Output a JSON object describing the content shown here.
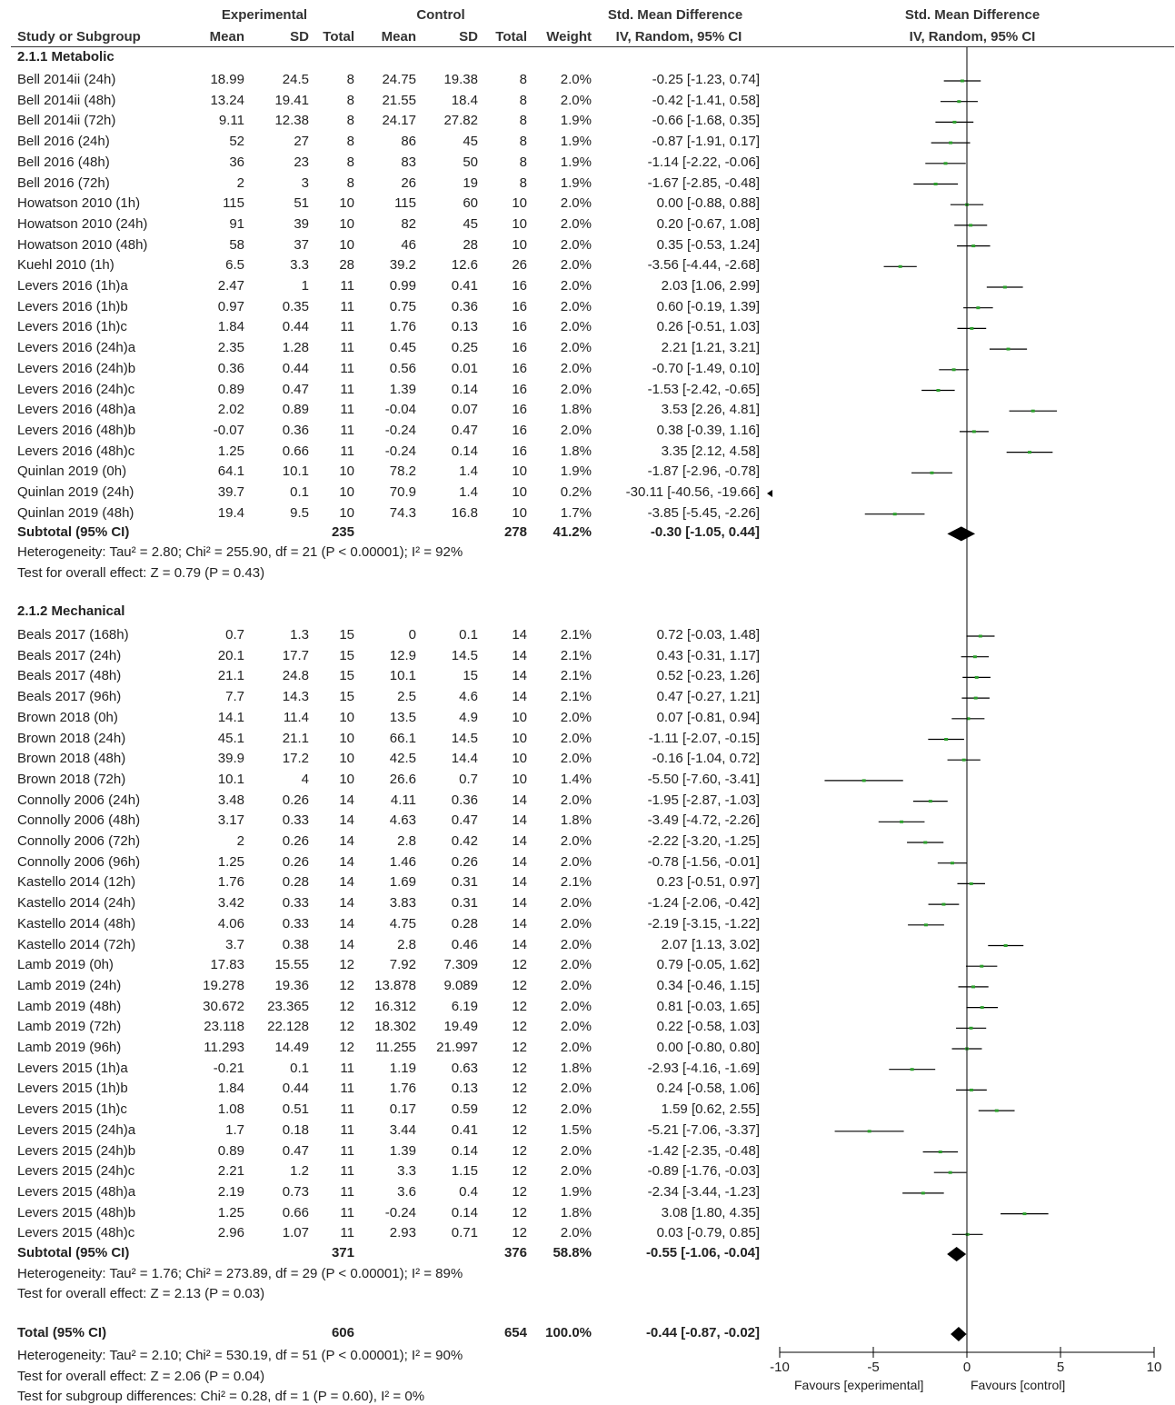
{
  "headers": {
    "experimental": "Experimental",
    "control": "Control",
    "std_mean_diff": "Std. Mean Difference",
    "study_or_subgroup": "Study or Subgroup",
    "mean": "Mean",
    "sd": "SD",
    "total": "Total",
    "weight": "Weight",
    "method": "IV, Random, 95% CI",
    "plot_title": "Std. Mean Difference",
    "plot_method": "IV, Random, 95% CI"
  },
  "groups": [
    {
      "title": "2.1.1 Metabolic",
      "studies": [
        {
          "name": "Bell 2014ii (24h)",
          "em": "18.99",
          "esd": "24.5",
          "et": "8",
          "cm": "24.75",
          "csd": "19.38",
          "ct": "8",
          "w": "2.0%",
          "ci": "-0.25 [-1.23, 0.74]",
          "est": -0.25,
          "lo": -1.23,
          "hi": 0.74
        },
        {
          "name": "Bell 2014ii (48h)",
          "em": "13.24",
          "esd": "19.41",
          "et": "8",
          "cm": "21.55",
          "csd": "18.4",
          "ct": "8",
          "w": "2.0%",
          "ci": "-0.42 [-1.41, 0.58]",
          "est": -0.42,
          "lo": -1.41,
          "hi": 0.58
        },
        {
          "name": "Bell 2014ii (72h)",
          "em": "9.11",
          "esd": "12.38",
          "et": "8",
          "cm": "24.17",
          "csd": "27.82",
          "ct": "8",
          "w": "1.9%",
          "ci": "-0.66 [-1.68, 0.35]",
          "est": -0.66,
          "lo": -1.68,
          "hi": 0.35
        },
        {
          "name": "Bell 2016 (24h)",
          "em": "52",
          "esd": "27",
          "et": "8",
          "cm": "86",
          "csd": "45",
          "ct": "8",
          "w": "1.9%",
          "ci": "-0.87 [-1.91, 0.17]",
          "est": -0.87,
          "lo": -1.91,
          "hi": 0.17
        },
        {
          "name": "Bell 2016 (48h)",
          "em": "36",
          "esd": "23",
          "et": "8",
          "cm": "83",
          "csd": "50",
          "ct": "8",
          "w": "1.9%",
          "ci": "-1.14 [-2.22, -0.06]",
          "est": -1.14,
          "lo": -2.22,
          "hi": -0.06
        },
        {
          "name": "Bell 2016 (72h)",
          "em": "2",
          "esd": "3",
          "et": "8",
          "cm": "26",
          "csd": "19",
          "ct": "8",
          "w": "1.9%",
          "ci": "-1.67 [-2.85, -0.48]",
          "est": -1.67,
          "lo": -2.85,
          "hi": -0.48
        },
        {
          "name": "Howatson 2010 (1h)",
          "em": "115",
          "esd": "51",
          "et": "10",
          "cm": "115",
          "csd": "60",
          "ct": "10",
          "w": "2.0%",
          "ci": "0.00 [-0.88, 0.88]",
          "est": 0.0,
          "lo": -0.88,
          "hi": 0.88
        },
        {
          "name": "Howatson 2010 (24h)",
          "em": "91",
          "esd": "39",
          "et": "10",
          "cm": "82",
          "csd": "45",
          "ct": "10",
          "w": "2.0%",
          "ci": "0.20 [-0.67, 1.08]",
          "est": 0.2,
          "lo": -0.67,
          "hi": 1.08
        },
        {
          "name": "Howatson 2010 (48h)",
          "em": "58",
          "esd": "37",
          "et": "10",
          "cm": "46",
          "csd": "28",
          "ct": "10",
          "w": "2.0%",
          "ci": "0.35 [-0.53, 1.24]",
          "est": 0.35,
          "lo": -0.53,
          "hi": 1.24
        },
        {
          "name": "Kuehl 2010 (1h)",
          "em": "6.5",
          "esd": "3.3",
          "et": "28",
          "cm": "39.2",
          "csd": "12.6",
          "ct": "26",
          "w": "2.0%",
          "ci": "-3.56 [-4.44, -2.68]",
          "est": -3.56,
          "lo": -4.44,
          "hi": -2.68
        },
        {
          "name": "Levers 2016 (1h)a",
          "em": "2.47",
          "esd": "1",
          "et": "11",
          "cm": "0.99",
          "csd": "0.41",
          "ct": "16",
          "w": "2.0%",
          "ci": "2.03 [1.06, 2.99]",
          "est": 2.03,
          "lo": 1.06,
          "hi": 2.99
        },
        {
          "name": "Levers 2016 (1h)b",
          "em": "0.97",
          "esd": "0.35",
          "et": "11",
          "cm": "0.75",
          "csd": "0.36",
          "ct": "16",
          "w": "2.0%",
          "ci": "0.60 [-0.19, 1.39]",
          "est": 0.6,
          "lo": -0.19,
          "hi": 1.39
        },
        {
          "name": "Levers 2016 (1h)c",
          "em": "1.84",
          "esd": "0.44",
          "et": "11",
          "cm": "1.76",
          "csd": "0.13",
          "ct": "16",
          "w": "2.0%",
          "ci": "0.26 [-0.51, 1.03]",
          "est": 0.26,
          "lo": -0.51,
          "hi": 1.03
        },
        {
          "name": "Levers 2016 (24h)a",
          "em": "2.35",
          "esd": "1.28",
          "et": "11",
          "cm": "0.45",
          "csd": "0.25",
          "ct": "16",
          "w": "2.0%",
          "ci": "2.21 [1.21, 3.21]",
          "est": 2.21,
          "lo": 1.21,
          "hi": 3.21
        },
        {
          "name": "Levers 2016 (24h)b",
          "em": "0.36",
          "esd": "0.44",
          "et": "11",
          "cm": "0.56",
          "csd": "0.01",
          "ct": "16",
          "w": "2.0%",
          "ci": "-0.70 [-1.49, 0.10]",
          "est": -0.7,
          "lo": -1.49,
          "hi": 0.1
        },
        {
          "name": "Levers 2016 (24h)c",
          "em": "0.89",
          "esd": "0.47",
          "et": "11",
          "cm": "1.39",
          "csd": "0.14",
          "ct": "16",
          "w": "2.0%",
          "ci": "-1.53 [-2.42, -0.65]",
          "est": -1.53,
          "lo": -2.42,
          "hi": -0.65
        },
        {
          "name": "Levers 2016 (48h)a",
          "em": "2.02",
          "esd": "0.89",
          "et": "11",
          "cm": "-0.04",
          "csd": "0.07",
          "ct": "16",
          "w": "1.8%",
          "ci": "3.53 [2.26, 4.81]",
          "est": 3.53,
          "lo": 2.26,
          "hi": 4.81
        },
        {
          "name": "Levers 2016 (48h)b",
          "em": "-0.07",
          "esd": "0.36",
          "et": "11",
          "cm": "-0.24",
          "csd": "0.47",
          "ct": "16",
          "w": "2.0%",
          "ci": "0.38 [-0.39, 1.16]",
          "est": 0.38,
          "lo": -0.39,
          "hi": 1.16
        },
        {
          "name": "Levers 2016 (48h)c",
          "em": "1.25",
          "esd": "0.66",
          "et": "11",
          "cm": "-0.24",
          "csd": "0.14",
          "ct": "16",
          "w": "1.8%",
          "ci": "3.35 [2.12, 4.58]",
          "est": 3.35,
          "lo": 2.12,
          "hi": 4.58
        },
        {
          "name": "Quinlan 2019 (0h)",
          "em": "64.1",
          "esd": "10.1",
          "et": "10",
          "cm": "78.2",
          "csd": "1.4",
          "ct": "10",
          "w": "1.9%",
          "ci": "-1.87 [-2.96, -0.78]",
          "est": -1.87,
          "lo": -2.96,
          "hi": -0.78
        },
        {
          "name": "Quinlan 2019 (24h)",
          "em": "39.7",
          "esd": "0.1",
          "et": "10",
          "cm": "70.9",
          "csd": "1.4",
          "ct": "10",
          "w": "0.2%",
          "ci": "-30.11 [-40.56, -19.66]",
          "est": -30.11,
          "lo": -40.56,
          "hi": -19.66
        },
        {
          "name": "Quinlan 2019 (48h)",
          "em": "19.4",
          "esd": "9.5",
          "et": "10",
          "cm": "74.3",
          "csd": "16.8",
          "ct": "10",
          "w": "1.7%",
          "ci": "-3.85 [-5.45, -2.26]",
          "est": -3.85,
          "lo": -5.45,
          "hi": -2.26
        }
      ],
      "subtotal": {
        "label": "Subtotal (95% CI)",
        "et": "235",
        "ct": "278",
        "w": "41.2%",
        "ci": "-0.30 [-1.05, 0.44]",
        "est": -0.3,
        "lo": -1.05,
        "hi": 0.44
      },
      "heterogeneity": "Heterogeneity: Tau² = 2.80; Chi² = 255.90, df = 21 (P < 0.00001); I² = 92%",
      "overall": "Test for overall effect: Z = 0.79 (P = 0.43)"
    },
    {
      "title": "2.1.2 Mechanical",
      "studies": [
        {
          "name": "Beals 2017 (168h)",
          "em": "0.7",
          "esd": "1.3",
          "et": "15",
          "cm": "0",
          "csd": "0.1",
          "ct": "14",
          "w": "2.1%",
          "ci": "0.72 [-0.03, 1.48]",
          "est": 0.72,
          "lo": -0.03,
          "hi": 1.48
        },
        {
          "name": "Beals 2017 (24h)",
          "em": "20.1",
          "esd": "17.7",
          "et": "15",
          "cm": "12.9",
          "csd": "14.5",
          "ct": "14",
          "w": "2.1%",
          "ci": "0.43 [-0.31, 1.17]",
          "est": 0.43,
          "lo": -0.31,
          "hi": 1.17
        },
        {
          "name": "Beals 2017 (48h)",
          "em": "21.1",
          "esd": "24.8",
          "et": "15",
          "cm": "10.1",
          "csd": "15",
          "ct": "14",
          "w": "2.1%",
          "ci": "0.52 [-0.23, 1.26]",
          "est": 0.52,
          "lo": -0.23,
          "hi": 1.26
        },
        {
          "name": "Beals 2017 (96h)",
          "em": "7.7",
          "esd": "14.3",
          "et": "15",
          "cm": "2.5",
          "csd": "4.6",
          "ct": "14",
          "w": "2.1%",
          "ci": "0.47 [-0.27, 1.21]",
          "est": 0.47,
          "lo": -0.27,
          "hi": 1.21
        },
        {
          "name": "Brown 2018 (0h)",
          "em": "14.1",
          "esd": "11.4",
          "et": "10",
          "cm": "13.5",
          "csd": "4.9",
          "ct": "10",
          "w": "2.0%",
          "ci": "0.07 [-0.81, 0.94]",
          "est": 0.07,
          "lo": -0.81,
          "hi": 0.94
        },
        {
          "name": "Brown 2018 (24h)",
          "em": "45.1",
          "esd": "21.1",
          "et": "10",
          "cm": "66.1",
          "csd": "14.5",
          "ct": "10",
          "w": "2.0%",
          "ci": "-1.11 [-2.07, -0.15]",
          "est": -1.11,
          "lo": -2.07,
          "hi": -0.15
        },
        {
          "name": "Brown 2018 (48h)",
          "em": "39.9",
          "esd": "17.2",
          "et": "10",
          "cm": "42.5",
          "csd": "14.4",
          "ct": "10",
          "w": "2.0%",
          "ci": "-0.16 [-1.04, 0.72]",
          "est": -0.16,
          "lo": -1.04,
          "hi": 0.72
        },
        {
          "name": "Brown 2018 (72h)",
          "em": "10.1",
          "esd": "4",
          "et": "10",
          "cm": "26.6",
          "csd": "0.7",
          "ct": "10",
          "w": "1.4%",
          "ci": "-5.50 [-7.60, -3.41]",
          "est": -5.5,
          "lo": -7.6,
          "hi": -3.41
        },
        {
          "name": "Connolly 2006 (24h)",
          "em": "3.48",
          "esd": "0.26",
          "et": "14",
          "cm": "4.11",
          "csd": "0.36",
          "ct": "14",
          "w": "2.0%",
          "ci": "-1.95 [-2.87, -1.03]",
          "est": -1.95,
          "lo": -2.87,
          "hi": -1.03
        },
        {
          "name": "Connolly 2006 (48h)",
          "em": "3.17",
          "esd": "0.33",
          "et": "14",
          "cm": "4.63",
          "csd": "0.47",
          "ct": "14",
          "w": "1.8%",
          "ci": "-3.49 [-4.72, -2.26]",
          "est": -3.49,
          "lo": -4.72,
          "hi": -2.26
        },
        {
          "name": "Connolly 2006 (72h)",
          "em": "2",
          "esd": "0.26",
          "et": "14",
          "cm": "2.8",
          "csd": "0.42",
          "ct": "14",
          "w": "2.0%",
          "ci": "-2.22 [-3.20, -1.25]",
          "est": -2.22,
          "lo": -3.2,
          "hi": -1.25
        },
        {
          "name": "Connolly 2006 (96h)",
          "em": "1.25",
          "esd": "0.26",
          "et": "14",
          "cm": "1.46",
          "csd": "0.26",
          "ct": "14",
          "w": "2.0%",
          "ci": "-0.78 [-1.56, -0.01]",
          "est": -0.78,
          "lo": -1.56,
          "hi": -0.01
        },
        {
          "name": "Kastello 2014 (12h)",
          "em": "1.76",
          "esd": "0.28",
          "et": "14",
          "cm": "1.69",
          "csd": "0.31",
          "ct": "14",
          "w": "2.1%",
          "ci": "0.23 [-0.51, 0.97]",
          "est": 0.23,
          "lo": -0.51,
          "hi": 0.97
        },
        {
          "name": "Kastello 2014 (24h)",
          "em": "3.42",
          "esd": "0.33",
          "et": "14",
          "cm": "3.83",
          "csd": "0.31",
          "ct": "14",
          "w": "2.0%",
          "ci": "-1.24 [-2.06, -0.42]",
          "est": -1.24,
          "lo": -2.06,
          "hi": -0.42
        },
        {
          "name": "Kastello 2014 (48h)",
          "em": "4.06",
          "esd": "0.33",
          "et": "14",
          "cm": "4.75",
          "csd": "0.28",
          "ct": "14",
          "w": "2.0%",
          "ci": "-2.19 [-3.15, -1.22]",
          "est": -2.19,
          "lo": -3.15,
          "hi": -1.22
        },
        {
          "name": "Kastello 2014 (72h)",
          "em": "3.7",
          "esd": "0.38",
          "et": "14",
          "cm": "2.8",
          "csd": "0.46",
          "ct": "14",
          "w": "2.0%",
          "ci": "2.07 [1.13, 3.02]",
          "est": 2.07,
          "lo": 1.13,
          "hi": 3.02
        },
        {
          "name": "Lamb 2019 (0h)",
          "em": "17.83",
          "esd": "15.55",
          "et": "12",
          "cm": "7.92",
          "csd": "7.309",
          "ct": "12",
          "w": "2.0%",
          "ci": "0.79 [-0.05, 1.62]",
          "est": 0.79,
          "lo": -0.05,
          "hi": 1.62
        },
        {
          "name": "Lamb 2019 (24h)",
          "em": "19.278",
          "esd": "19.36",
          "et": "12",
          "cm": "13.878",
          "csd": "9.089",
          "ct": "12",
          "w": "2.0%",
          "ci": "0.34 [-0.46, 1.15]",
          "est": 0.34,
          "lo": -0.46,
          "hi": 1.15
        },
        {
          "name": "Lamb 2019 (48h)",
          "em": "30.672",
          "esd": "23.365",
          "et": "12",
          "cm": "16.312",
          "csd": "6.19",
          "ct": "12",
          "w": "2.0%",
          "ci": "0.81 [-0.03, 1.65]",
          "est": 0.81,
          "lo": -0.03,
          "hi": 1.65
        },
        {
          "name": "Lamb 2019 (72h)",
          "em": "23.118",
          "esd": "22.128",
          "et": "12",
          "cm": "18.302",
          "csd": "19.49",
          "ct": "12",
          "w": "2.0%",
          "ci": "0.22 [-0.58, 1.03]",
          "est": 0.22,
          "lo": -0.58,
          "hi": 1.03
        },
        {
          "name": "Lamb 2019 (96h)",
          "em": "11.293",
          "esd": "14.49",
          "et": "12",
          "cm": "11.255",
          "csd": "21.997",
          "ct": "12",
          "w": "2.0%",
          "ci": "0.00 [-0.80, 0.80]",
          "est": 0.0,
          "lo": -0.8,
          "hi": 0.8
        },
        {
          "name": "Levers 2015 (1h)a",
          "em": "-0.21",
          "esd": "0.1",
          "et": "11",
          "cm": "1.19",
          "csd": "0.63",
          "ct": "12",
          "w": "1.8%",
          "ci": "-2.93 [-4.16, -1.69]",
          "est": -2.93,
          "lo": -4.16,
          "hi": -1.69
        },
        {
          "name": "Levers 2015 (1h)b",
          "em": "1.84",
          "esd": "0.44",
          "et": "11",
          "cm": "1.76",
          "csd": "0.13",
          "ct": "12",
          "w": "2.0%",
          "ci": "0.24 [-0.58, 1.06]",
          "est": 0.24,
          "lo": -0.58,
          "hi": 1.06
        },
        {
          "name": "Levers 2015 (1h)c",
          "em": "1.08",
          "esd": "0.51",
          "et": "11",
          "cm": "0.17",
          "csd": "0.59",
          "ct": "12",
          "w": "2.0%",
          "ci": "1.59 [0.62, 2.55]",
          "est": 1.59,
          "lo": 0.62,
          "hi": 2.55
        },
        {
          "name": "Levers 2015 (24h)a",
          "em": "1.7",
          "esd": "0.18",
          "et": "11",
          "cm": "3.44",
          "csd": "0.41",
          "ct": "12",
          "w": "1.5%",
          "ci": "-5.21 [-7.06, -3.37]",
          "est": -5.21,
          "lo": -7.06,
          "hi": -3.37
        },
        {
          "name": "Levers 2015 (24h)b",
          "em": "0.89",
          "esd": "0.47",
          "et": "11",
          "cm": "1.39",
          "csd": "0.14",
          "ct": "12",
          "w": "2.0%",
          "ci": "-1.42 [-2.35, -0.48]",
          "est": -1.42,
          "lo": -2.35,
          "hi": -0.48
        },
        {
          "name": "Levers 2015 (24h)c",
          "em": "2.21",
          "esd": "1.2",
          "et": "11",
          "cm": "3.3",
          "csd": "1.15",
          "ct": "12",
          "w": "2.0%",
          "ci": "-0.89 [-1.76, -0.03]",
          "est": -0.89,
          "lo": -1.76,
          "hi": -0.03
        },
        {
          "name": "Levers 2015 (48h)a",
          "em": "2.19",
          "esd": "0.73",
          "et": "11",
          "cm": "3.6",
          "csd": "0.4",
          "ct": "12",
          "w": "1.9%",
          "ci": "-2.34 [-3.44, -1.23]",
          "est": -2.34,
          "lo": -3.44,
          "hi": -1.23
        },
        {
          "name": "Levers 2015 (48h)b",
          "em": "1.25",
          "esd": "0.66",
          "et": "11",
          "cm": "-0.24",
          "csd": "0.14",
          "ct": "12",
          "w": "1.8%",
          "ci": "3.08 [1.80, 4.35]",
          "est": 3.08,
          "lo": 1.8,
          "hi": 4.35
        },
        {
          "name": "Levers 2015 (48h)c",
          "em": "2.96",
          "esd": "1.07",
          "et": "11",
          "cm": "2.93",
          "csd": "0.71",
          "ct": "12",
          "w": "2.0%",
          "ci": "0.03 [-0.79, 0.85]",
          "est": 0.03,
          "lo": -0.79,
          "hi": 0.85
        }
      ],
      "subtotal": {
        "label": "Subtotal (95% CI)",
        "et": "371",
        "ct": "376",
        "w": "58.8%",
        "ci": "-0.55 [-1.06, -0.04]",
        "est": -0.55,
        "lo": -1.06,
        "hi": -0.04
      },
      "heterogeneity": "Heterogeneity: Tau² = 1.76; Chi² = 273.89, df = 29 (P < 0.00001); I² = 89%",
      "overall": "Test for overall effect: Z = 2.13 (P = 0.03)"
    }
  ],
  "total": {
    "label": "Total (95% CI)",
    "et": "606",
    "ct": "654",
    "w": "100.0%",
    "ci": "-0.44 [-0.87, -0.02]",
    "est": -0.44,
    "lo": -0.87,
    "hi": -0.02
  },
  "footer_lines": [
    "Heterogeneity: Tau² = 2.10; Chi² = 530.19, df = 51 (P < 0.00001); I² = 90%",
    "Test for overall effect: Z = 2.06 (P = 0.04)",
    "Test for subgroup differences: Chi² = 0.28, df = 1 (P = 0.60), I² = 0%"
  ],
  "axis": {
    "ticks": [
      -10,
      -5,
      0,
      5,
      10
    ],
    "tick_labels": [
      "-10",
      "-5",
      "0",
      "5",
      "10"
    ],
    "favours_left": "Favours [experimental]",
    "favours_right": "Favours [control]"
  },
  "chart_data": {
    "type": "forest",
    "title": "Std. Mean Difference",
    "subtitle": "IV, Random, 95% CI",
    "xlim": [
      -10,
      10
    ],
    "reference_line": 0,
    "marker_color": "#2ca02c",
    "diamond_color": "#000000",
    "note": "Quinlan 2019 (24h) interval lies beyond the left axis limit and is drawn as a left-pointing arrow"
  }
}
